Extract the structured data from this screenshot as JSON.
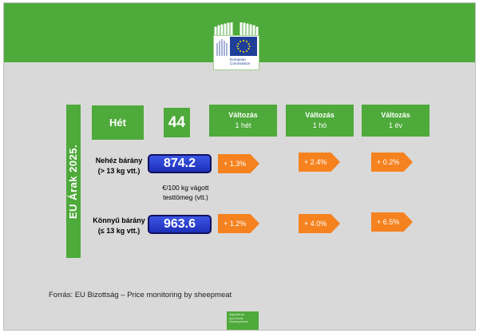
{
  "header": {
    "logo_line1": "European",
    "logo_line2": "Commission"
  },
  "side_title": "EU Árak 2025.",
  "week": {
    "label": "Hét",
    "value": "44"
  },
  "change_headers": [
    {
      "line1": "Változás",
      "line2": "1 hét"
    },
    {
      "line1": "Változás",
      "line2": "1 hó"
    },
    {
      "line1": "Változás",
      "line2": "1 év"
    }
  ],
  "rows": [
    {
      "name": "Nehéz bárány",
      "sub": "(> 13 kg vtt.)",
      "price": "874.2",
      "changes": [
        "+ 1.3%",
        "+ 2.4%",
        "+ 0.2%"
      ]
    },
    {
      "name": "Könnyű bárány",
      "sub": "(≤ 13 kg vtt.)",
      "price": "963.6",
      "changes": [
        "+ 1.2%",
        "+ 4.0%",
        "+ 6.5%"
      ]
    }
  ],
  "unit_note": {
    "line1": "€/100 kg vágott",
    "line2": "testtömeg (vtt.)"
  },
  "source": "Forrás: EU Bizottság – Price monitoring by sheepmeat",
  "footer_logo": {
    "line1": "Agriculture",
    "line2": "and Rural",
    "line3": "Development"
  },
  "colors": {
    "green": "#4eaa3a",
    "orange": "#f5821f",
    "blue": "#1d2fb8",
    "background": "#d9d9d9"
  }
}
